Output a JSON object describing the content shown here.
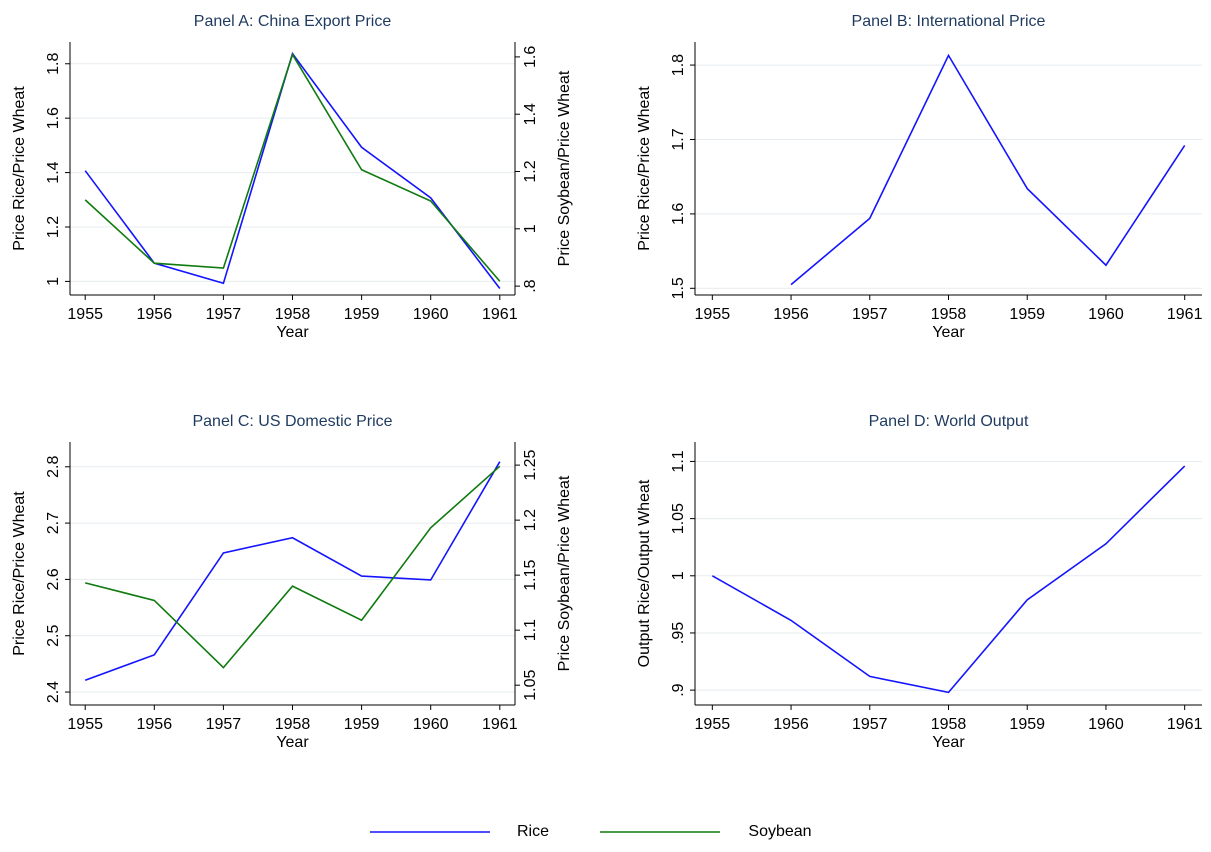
{
  "chart_data": [
    {
      "type": "line",
      "title": "Panel A: China Export Price",
      "x_label": "Year",
      "y_label": "Price Rice/Price Wheat",
      "y2_label": "Price Soybean/Price Wheat",
      "x": [
        1955,
        1956,
        1957,
        1958,
        1959,
        1960,
        1961
      ],
      "xlim": [
        1954.78,
        1961.22
      ],
      "xticks": [
        1955,
        1956,
        1957,
        1958,
        1959,
        1960,
        1961
      ],
      "ylim": [
        0.95,
        1.88
      ],
      "yticks": [
        1,
        1.2,
        1.4,
        1.6,
        1.8
      ],
      "y2lim": [
        0.769,
        1.652
      ],
      "y2ticks": [
        {
          "value": 0.8,
          "label": ".8"
        },
        1,
        1.2,
        1.4,
        1.6
      ],
      "grid": true,
      "legend": "bottom",
      "series": [
        {
          "name": "Rice",
          "color": "#1414ff",
          "values": [
            1.407,
            1.067,
            0.993,
            1.837,
            1.493,
            1.307,
            0.974
          ]
        },
        {
          "name": "Soybean",
          "color": "#0f7a0f",
          "axis": "y2",
          "values": [
            1.101,
            0.88,
            0.863,
            1.608,
            1.206,
            1.097,
            0.817
          ]
        }
      ]
    },
    {
      "type": "line",
      "title": "Panel B: International Price",
      "x_label": "Year",
      "y_label": "Price Rice/Price Wheat",
      "x": [
        1955,
        1956,
        1957,
        1958,
        1959,
        1960,
        1961
      ],
      "xlim": [
        1954.78,
        1961.22
      ],
      "xticks": [
        1955,
        1956,
        1957,
        1958,
        1959,
        1960,
        1961
      ],
      "ylim": [
        1.491,
        1.831
      ],
      "yticks": [
        1.5,
        1.6,
        1.7,
        1.8
      ],
      "grid": true,
      "series": [
        {
          "color": "#1414ff",
          "values": [
            null,
            1.505,
            1.594,
            1.813,
            1.634,
            1.531,
            1.692
          ]
        }
      ]
    },
    {
      "type": "line",
      "title": "Panel C: US Domestic Price",
      "x_label": "Year",
      "y_label": "Price Rice/Price Wheat",
      "y2_label": "Price Soybean/Price Wheat",
      "x": [
        1955,
        1956,
        1957,
        1958,
        1959,
        1960,
        1961
      ],
      "xlim": [
        1954.78,
        1961.22
      ],
      "xticks": [
        1955,
        1956,
        1957,
        1958,
        1959,
        1960,
        1961
      ],
      "ylim": [
        2.377,
        2.844
      ],
      "yticks": [
        2.4,
        2.5,
        2.6,
        2.7,
        2.8
      ],
      "y2lim": [
        1.032,
        1.271
      ],
      "y2ticks": [
        1.05,
        1.1,
        1.15,
        1.2,
        1.25
      ],
      "grid": true,
      "series": [
        {
          "color": "#1414ff",
          "values": [
            2.421,
            2.466,
            2.647,
            2.674,
            2.606,
            2.599,
            2.809
          ]
        },
        {
          "color": "#0f7a0f",
          "axis": "y2",
          "values": [
            1.143,
            1.127,
            1.066,
            1.14,
            1.109,
            1.193,
            1.249
          ]
        }
      ]
    },
    {
      "type": "line",
      "title": "Panel D: World Output",
      "x_label": "Year",
      "y_label": "Output Rice/Output Wheat",
      "x": [
        1955,
        1956,
        1957,
        1958,
        1959,
        1960,
        1961
      ],
      "xlim": [
        1954.78,
        1961.22
      ],
      "xticks": [
        1955,
        1956,
        1957,
        1958,
        1959,
        1960,
        1961
      ],
      "ylim": [
        0.887,
        1.117
      ],
      "yticks": [
        {
          "value": 0.9,
          "label": ".9"
        },
        {
          "value": 0.95,
          "label": ".95"
        },
        1,
        1.05,
        1.1
      ],
      "grid": true,
      "series": [
        {
          "color": "#1414ff",
          "values": [
            1.0,
            0.961,
            0.912,
            0.898,
            0.979,
            1.028,
            1.096
          ]
        }
      ]
    }
  ]
}
